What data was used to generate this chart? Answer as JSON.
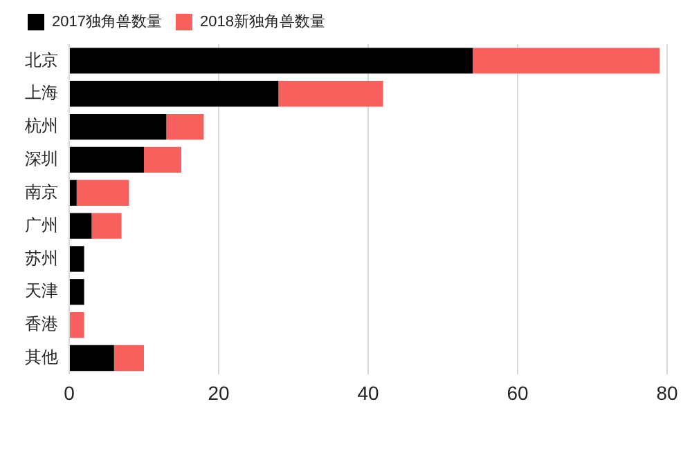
{
  "chart_data": {
    "type": "bar",
    "orientation": "horizontal",
    "stacked": true,
    "categories": [
      "北京",
      "上海",
      "杭州",
      "深圳",
      "南京",
      "广州",
      "苏州",
      "天津",
      "香港",
      "其他"
    ],
    "series": [
      {
        "name": "2017独角兽数量",
        "color": "#000000",
        "values": [
          54,
          28,
          13,
          10,
          1,
          3,
          2,
          2,
          0,
          6
        ]
      },
      {
        "name": "2018新独角兽数量",
        "color": "#f8605e",
        "values": [
          25,
          14,
          5,
          5,
          7,
          4,
          0,
          0,
          2,
          4
        ]
      }
    ],
    "xlim": [
      0,
      80
    ],
    "xticks": [
      0,
      20,
      40,
      60,
      80
    ],
    "grid": "x",
    "legend": "top left"
  }
}
